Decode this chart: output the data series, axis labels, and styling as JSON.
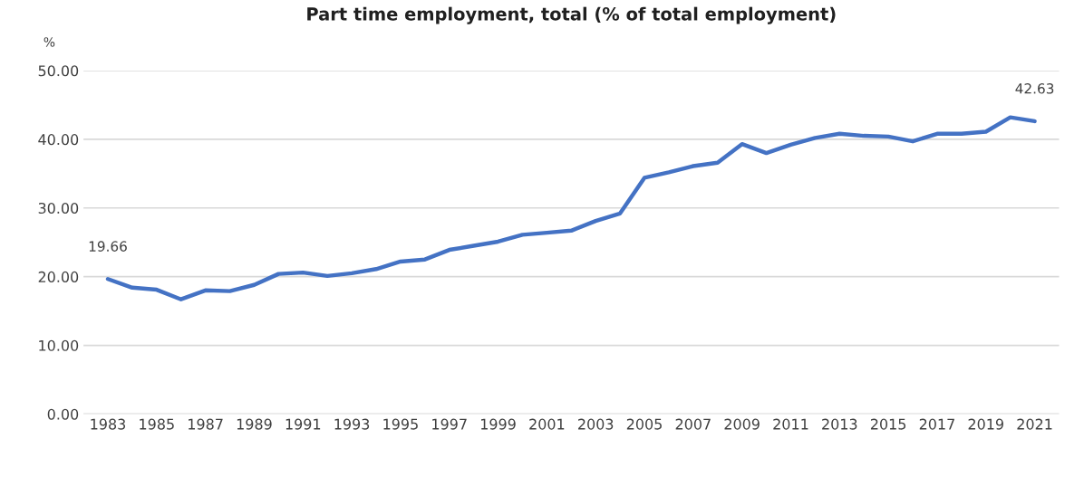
{
  "chart_data": {
    "type": "line",
    "title": "Part time employment, total (% of total employment)",
    "ylabel": "%",
    "x": [
      1983,
      1984,
      1985,
      1986,
      1987,
      1988,
      1989,
      1990,
      1991,
      1992,
      1993,
      1994,
      1995,
      1996,
      1997,
      1998,
      1999,
      2000,
      2001,
      2002,
      2003,
      2004,
      2005,
      2006,
      2007,
      2008,
      2009,
      2010,
      2011,
      2012,
      2013,
      2014,
      2015,
      2016,
      2017,
      2018,
      2019,
      2020,
      2021
    ],
    "series": [
      {
        "color": "#4472c4",
        "values": [
          19.66,
          18.4,
          18.1,
          16.7,
          18.0,
          17.9,
          18.8,
          20.4,
          20.6,
          20.1,
          20.5,
          21.1,
          22.2,
          22.5,
          23.9,
          24.5,
          25.1,
          26.1,
          26.4,
          26.7,
          28.1,
          29.2,
          34.4,
          35.2,
          36.1,
          36.6,
          39.3,
          38.0,
          39.2,
          40.2,
          40.8,
          40.5,
          40.4,
          39.7,
          40.8,
          40.8,
          41.1,
          43.2,
          42.63
        ],
        "value_labels": [
          "19.66",
          null,
          null,
          null,
          null,
          null,
          null,
          null,
          null,
          null,
          null,
          null,
          null,
          null,
          null,
          null,
          null,
          null,
          null,
          null,
          null,
          null,
          null,
          null,
          null,
          null,
          null,
          null,
          null,
          null,
          null,
          null,
          null,
          null,
          null,
          null,
          null,
          null,
          "42.63"
        ]
      }
    ],
    "xlim": [
      1982,
      2022
    ],
    "xticks": [
      1983,
      1985,
      1987,
      1989,
      1991,
      1993,
      1995,
      1997,
      1999,
      2001,
      2003,
      2005,
      2007,
      2009,
      2011,
      2013,
      2015,
      2017,
      2019,
      2021
    ],
    "ylim": [
      0,
      50
    ],
    "yticks": [
      {
        "value": 0,
        "label": "0.00"
      },
      {
        "value": 10,
        "label": "10.00"
      },
      {
        "value": 20,
        "label": "20.00"
      },
      {
        "value": 30,
        "label": "30.00"
      },
      {
        "value": 40,
        "label": "40.00"
      },
      {
        "value": 50,
        "label": "50.00"
      }
    ],
    "grid": "y",
    "legend": false,
    "marker": "none",
    "line_style": "solid"
  }
}
